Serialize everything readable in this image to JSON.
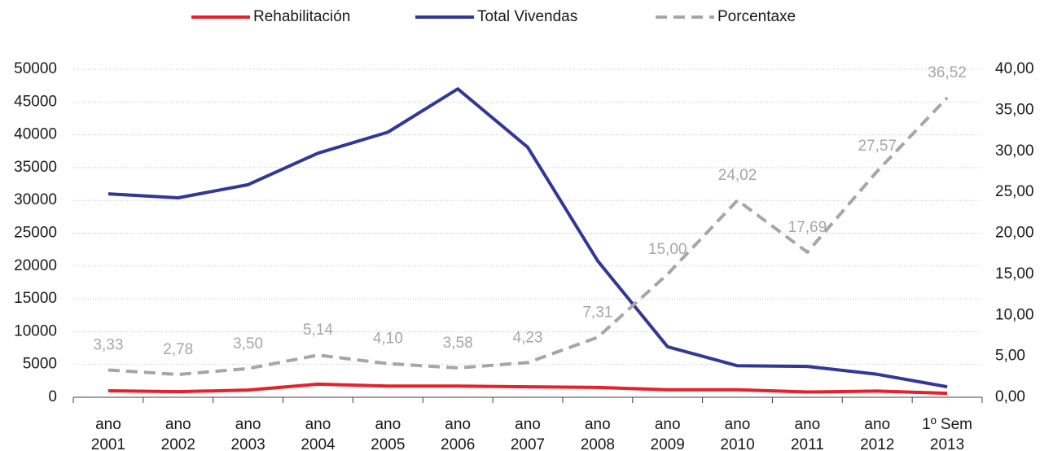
{
  "chart_data": {
    "type": "line",
    "categories": [
      "ano 2001",
      "ano 2002",
      "ano 2003",
      "ano 2004",
      "ano 2005",
      "ano 2006",
      "ano 2007",
      "ano 2008",
      "ano 2009",
      "ano 2010",
      "ano 2011",
      "ano 2012",
      "1º Sem 2013"
    ],
    "series": [
      {
        "name": "Rehabilitación",
        "color": "#e8202a",
        "values": [
          1000,
          850,
          1100,
          2000,
          1700,
          1700,
          1600,
          1500,
          1150,
          1150,
          800,
          950,
          600
        ]
      },
      {
        "name": "Total Vivendas",
        "color": "#333795",
        "values": [
          31000,
          30400,
          32400,
          37200,
          40400,
          47000,
          38100,
          20800,
          7700,
          4800,
          4700,
          3500,
          1600
        ]
      },
      {
        "name": "Porcentaxe",
        "color": "#a6a6a6",
        "dashed": true,
        "axis": "y2",
        "values": [
          3.33,
          2.78,
          3.5,
          5.14,
          4.1,
          3.58,
          4.23,
          7.31,
          15.0,
          24.02,
          17.69,
          27.57,
          36.52
        ],
        "value_labels": [
          "3,33",
          "2,78",
          "3,50",
          "5,14",
          "4,10",
          "3,58",
          "4,23",
          "7,31",
          "15,00",
          "24,02",
          "17,69",
          "27,57",
          "36,52"
        ]
      }
    ],
    "ylim": [
      0,
      50000
    ],
    "yticks": [
      0,
      5000,
      10000,
      15000,
      20000,
      25000,
      30000,
      35000,
      40000,
      45000,
      50000
    ],
    "y2lim": [
      0,
      40
    ],
    "y2ticks": [
      {
        "value": 0,
        "label": "0,00"
      },
      {
        "value": 5,
        "label": "5,00"
      },
      {
        "value": 10,
        "label": "10,00"
      },
      {
        "value": 15,
        "label": "15,00"
      },
      {
        "value": 20,
        "label": "20,00"
      },
      {
        "value": 25,
        "label": "25,00"
      },
      {
        "value": 30,
        "label": "30,00"
      },
      {
        "value": 35,
        "label": "35,00"
      },
      {
        "value": 40,
        "label": "40,00"
      }
    ],
    "grid": true,
    "legend": "top"
  }
}
